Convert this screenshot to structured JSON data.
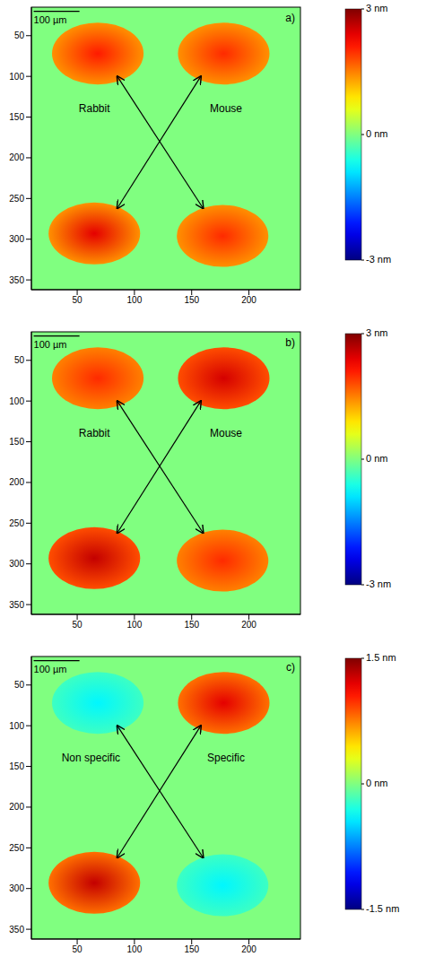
{
  "chart_data": [
    {
      "type": "heatmap",
      "panel": "a)",
      "xlim": [
        10,
        245
      ],
      "ylim": [
        362,
        15
      ],
      "xticks": [
        50,
        100,
        150,
        200
      ],
      "yticks": [
        50,
        100,
        150,
        200,
        250,
        300,
        350
      ],
      "background": 0,
      "spots": [
        {
          "x": 68,
          "y": 72,
          "rx": 40,
          "ry": 38,
          "value": 2.1,
          "edge": 1.4
        },
        {
          "x": 178,
          "y": 72,
          "rx": 40,
          "ry": 38,
          "value": 2.0,
          "edge": 1.4
        },
        {
          "x": 65,
          "y": 293,
          "rx": 40,
          "ry": 38,
          "value": 2.4,
          "edge": 1.4
        },
        {
          "x": 177,
          "y": 296,
          "rx": 40,
          "ry": 38,
          "value": 2.0,
          "edge": 1.4
        }
      ],
      "annotations": [
        {
          "text": "Rabbit",
          "x": 65,
          "y": 140
        },
        {
          "text": "Mouse",
          "x": 180,
          "y": 140
        }
      ],
      "arrows": [
        {
          "from": [
            85,
            100
          ],
          "to": [
            160,
            262
          ]
        },
        {
          "from": [
            158,
            100
          ],
          "to": [
            85,
            262
          ]
        }
      ],
      "scale_bar": {
        "label": "100 µm",
        "x": 12,
        "y": 20,
        "length": 40
      },
      "colorbar": {
        "range": [
          -3,
          3
        ],
        "ticks": [
          {
            "value": 3,
            "label": "3 nm"
          },
          {
            "value": 0,
            "label": "0 nm"
          },
          {
            "value": -3,
            "label": "-3 nm"
          }
        ]
      }
    },
    {
      "type": "heatmap",
      "panel": "b)",
      "xlim": [
        10,
        245
      ],
      "ylim": [
        362,
        15
      ],
      "xticks": [
        50,
        100,
        150,
        200
      ],
      "yticks": [
        50,
        100,
        150,
        200,
        250,
        300,
        350
      ],
      "background": 0,
      "spots": [
        {
          "x": 68,
          "y": 72,
          "rx": 40,
          "ry": 38,
          "value": 2.0,
          "edge": 1.5
        },
        {
          "x": 178,
          "y": 72,
          "rx": 40,
          "ry": 38,
          "value": 2.5,
          "edge": 1.8
        },
        {
          "x": 65,
          "y": 293,
          "rx": 40,
          "ry": 38,
          "value": 2.6,
          "edge": 1.8
        },
        {
          "x": 177,
          "y": 296,
          "rx": 40,
          "ry": 38,
          "value": 2.0,
          "edge": 1.5
        }
      ],
      "annotations": [
        {
          "text": "Rabbit",
          "x": 65,
          "y": 140
        },
        {
          "text": "Mouse",
          "x": 180,
          "y": 140
        }
      ],
      "arrows": [
        {
          "from": [
            85,
            100
          ],
          "to": [
            160,
            262
          ]
        },
        {
          "from": [
            158,
            100
          ],
          "to": [
            85,
            262
          ]
        }
      ],
      "scale_bar": {
        "label": "100 µm",
        "x": 12,
        "y": 20,
        "length": 40
      },
      "colorbar": {
        "range": [
          -3,
          3
        ],
        "ticks": [
          {
            "value": 3,
            "label": "3 nm"
          },
          {
            "value": 0,
            "label": "0 nm"
          },
          {
            "value": -3,
            "label": "-3 nm"
          }
        ]
      }
    },
    {
      "type": "heatmap",
      "panel": "c)",
      "xlim": [
        10,
        245
      ],
      "ylim": [
        362,
        15
      ],
      "xticks": [
        50,
        100,
        150,
        200
      ],
      "yticks": [
        50,
        100,
        150,
        200,
        250,
        300,
        350
      ],
      "background": 0,
      "spots": [
        {
          "x": 68,
          "y": 72,
          "rx": 40,
          "ry": 38,
          "value": -0.4,
          "edge": -0.2
        },
        {
          "x": 178,
          "y": 72,
          "rx": 40,
          "ry": 38,
          "value": 1.2,
          "edge": 0.8
        },
        {
          "x": 65,
          "y": 293,
          "rx": 40,
          "ry": 38,
          "value": 1.3,
          "edge": 0.8
        },
        {
          "x": 177,
          "y": 296,
          "rx": 40,
          "ry": 38,
          "value": -0.4,
          "edge": -0.2
        }
      ],
      "annotations": [
        {
          "text": "Non specific",
          "x": 62,
          "y": 140
        },
        {
          "text": "Specific",
          "x": 180,
          "y": 140
        }
      ],
      "arrows": [
        {
          "from": [
            85,
            100
          ],
          "to": [
            160,
            262
          ]
        },
        {
          "from": [
            158,
            100
          ],
          "to": [
            85,
            262
          ]
        }
      ],
      "scale_bar": {
        "label": "100 µm",
        "x": 12,
        "y": 20,
        "length": 40
      },
      "colorbar": {
        "range": [
          -1.5,
          1.5
        ],
        "ticks": [
          {
            "value": 1.5,
            "label": "1.5 nm"
          },
          {
            "value": 0,
            "label": "0 nm"
          },
          {
            "value": -1.5,
            "label": "-1.5 nm"
          }
        ]
      }
    }
  ]
}
